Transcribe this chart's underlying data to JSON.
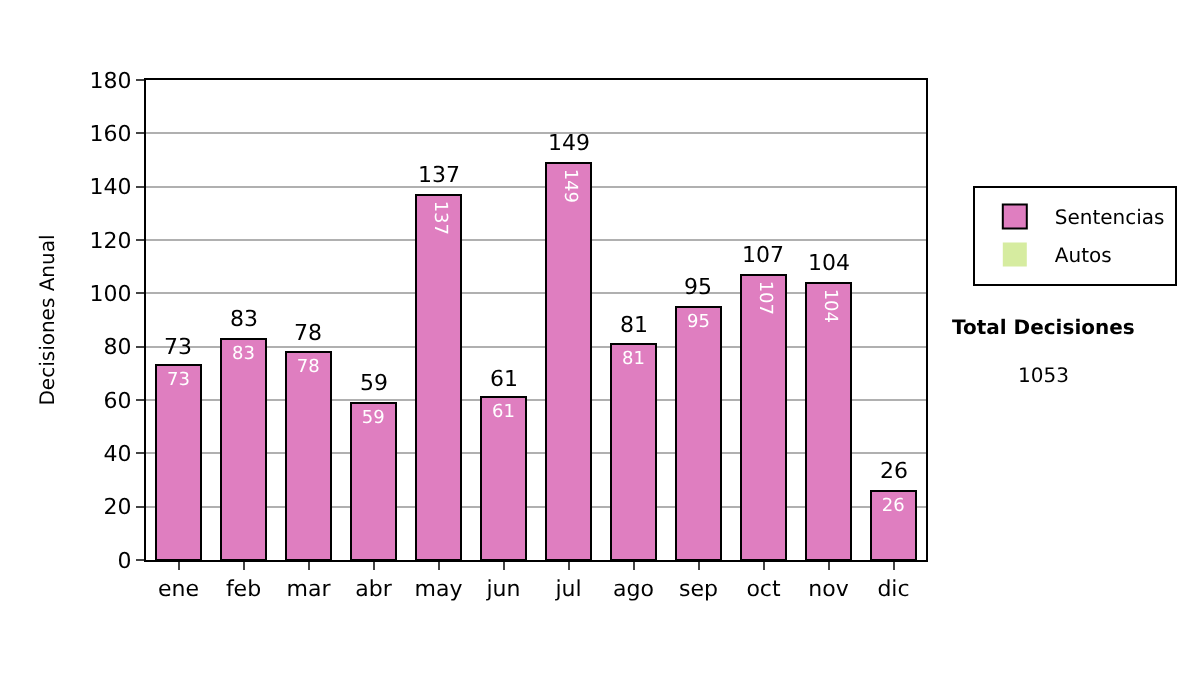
{
  "chart_data": {
    "type": "bar",
    "ylabel": "Decisiones Anual",
    "categories": [
      "ene",
      "feb",
      "mar",
      "abr",
      "may",
      "jun",
      "jul",
      "ago",
      "sep",
      "oct",
      "nov",
      "dic"
    ],
    "stacked": true,
    "series": [
      {
        "name": "Sentencias",
        "color": "#df7ec0",
        "values": [
          73,
          83,
          78,
          59,
          137,
          61,
          149,
          81,
          95,
          107,
          104,
          26
        ],
        "value_labels": [
          "73",
          "83",
          "78",
          "59",
          "137",
          "61",
          "149",
          "81",
          "95",
          "107",
          "104",
          "26"
        ]
      },
      {
        "name": "Autos",
        "color": "#d6eca0",
        "values": [
          0,
          0,
          0,
          0,
          0,
          0,
          0,
          0,
          0,
          0,
          0,
          0
        ]
      }
    ],
    "totals": [
      "73",
      "83",
      "78",
      "59",
      "137",
      "61",
      "149",
      "81",
      "95",
      "107",
      "104",
      "26"
    ],
    "ylim": [
      0,
      180
    ],
    "yticks": [
      0,
      20,
      40,
      60,
      80,
      100,
      120,
      140,
      160,
      180
    ],
    "grid": "y",
    "legend": "right",
    "annotations": [
      "Total Decisiones",
      "1053"
    ]
  }
}
